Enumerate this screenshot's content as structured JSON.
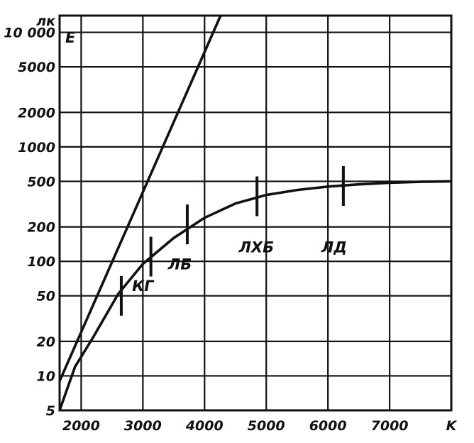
{
  "chart_data": {
    "type": "line",
    "y_unit": "лк",
    "y_symbol": "E",
    "x_unit": "K",
    "y_scale": "log",
    "x_ticks": [
      "2000",
      "3000",
      "4000",
      "5000",
      "6000",
      "7000"
    ],
    "x_tick_values": [
      2000,
      3000,
      4000,
      5000,
      6000,
      7000
    ],
    "y_ticks": [
      "10 000",
      "5000",
      "2000",
      "1000",
      "500",
      "200",
      "100",
      "50",
      "20",
      "10",
      "5"
    ],
    "y_tick_values": [
      10000,
      5000,
      2000,
      1000,
      500,
      200,
      100,
      50,
      20,
      10,
      5
    ],
    "xlim": [
      1650,
      8000
    ],
    "ylim": [
      5,
      14000
    ],
    "grid": true,
    "series": [
      {
        "points": [
          [
            1650,
            5
          ],
          [
            1900,
            12
          ],
          [
            2200,
            22
          ],
          [
            2600,
            52
          ],
          [
            3000,
            95
          ],
          [
            3500,
            160
          ],
          [
            4000,
            240
          ],
          [
            4500,
            320
          ],
          [
            5000,
            380
          ],
          [
            5500,
            420
          ],
          [
            6000,
            450
          ],
          [
            6500,
            470
          ],
          [
            7000,
            485
          ],
          [
            7500,
            495
          ],
          [
            8000,
            500
          ]
        ]
      },
      {
        "points": [
          [
            1650,
            9
          ],
          [
            4260,
            14000
          ]
        ]
      }
    ],
    "annotations": [
      {
        "text": "КГ",
        "x": 3000,
        "y": 55
      },
      {
        "text": "ЛБ",
        "x": 3600,
        "y": 85
      },
      {
        "text": "ЛХБ",
        "x": 4840,
        "y": 120
      },
      {
        "text": "ЛД",
        "x": 6100,
        "y": 120
      }
    ],
    "markers": [
      [
        2650,
        50
      ],
      [
        3130,
        110
      ],
      [
        3720,
        210
      ],
      [
        4850,
        370
      ],
      [
        6250,
        455
      ]
    ]
  }
}
